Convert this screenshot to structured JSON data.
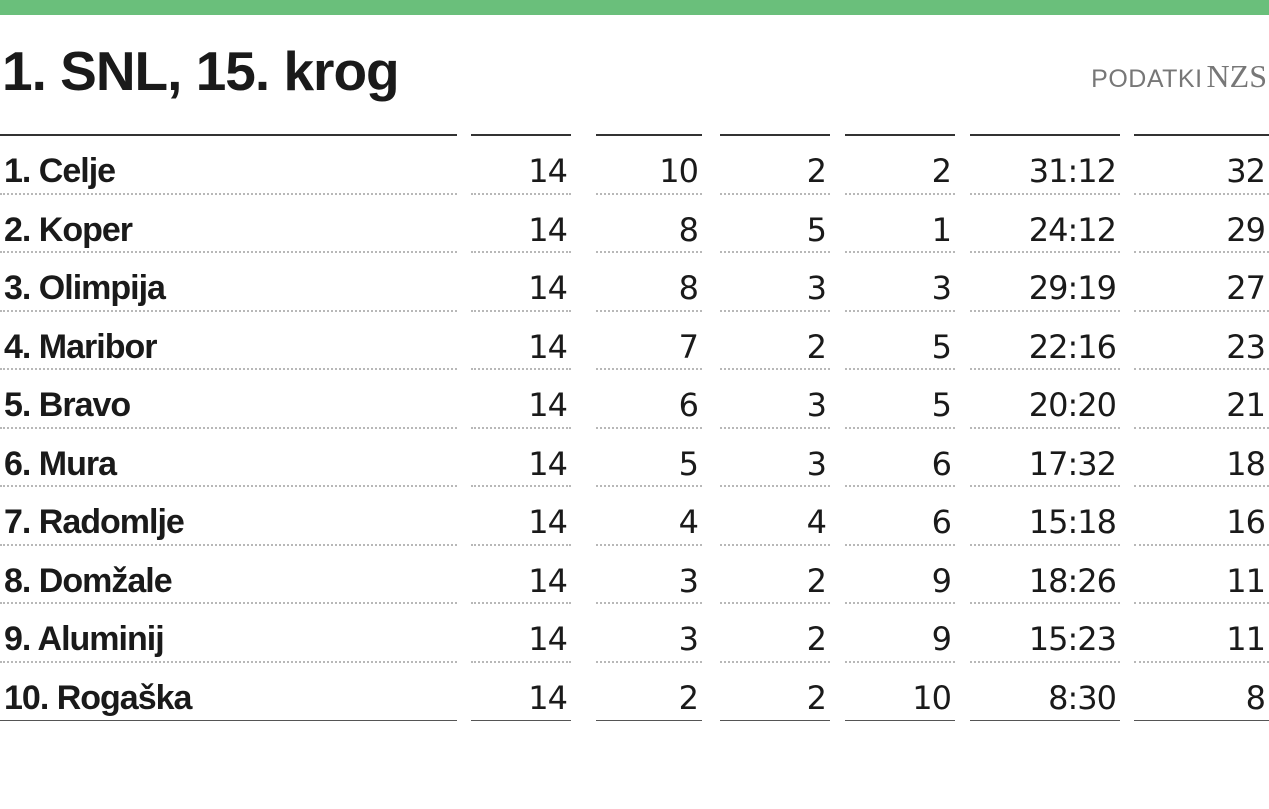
{
  "accent_color": "#6abf7b",
  "title": "1. SNL, 15. krog",
  "source": {
    "label": "PODATKI",
    "org": "NZS"
  },
  "table": {
    "rows": [
      {
        "team": "1. Celje",
        "played": "14",
        "won": "10",
        "drawn": "2",
        "lost": "2",
        "goals": "31:12",
        "points": "32"
      },
      {
        "team": "2. Koper",
        "played": "14",
        "won": "8",
        "drawn": "5",
        "lost": "1",
        "goals": "24:12",
        "points": "29"
      },
      {
        "team": "3. Olimpija",
        "played": "14",
        "won": "8",
        "drawn": "3",
        "lost": "3",
        "goals": "29:19",
        "points": "27"
      },
      {
        "team": "4. Maribor",
        "played": "14",
        "won": "7",
        "drawn": "2",
        "lost": "5",
        "goals": "22:16",
        "points": "23"
      },
      {
        "team": "5. Bravo",
        "played": "14",
        "won": "6",
        "drawn": "3",
        "lost": "5",
        "goals": "20:20",
        "points": "21"
      },
      {
        "team": "6. Mura",
        "played": "14",
        "won": "5",
        "drawn": "3",
        "lost": "6",
        "goals": "17:32",
        "points": "18"
      },
      {
        "team": "7. Radomlje",
        "played": "14",
        "won": "4",
        "drawn": "4",
        "lost": "6",
        "goals": "15:18",
        "points": "16"
      },
      {
        "team": "8. Domžale",
        "played": "14",
        "won": "3",
        "drawn": "2",
        "lost": "9",
        "goals": "18:26",
        "points": "11"
      },
      {
        "team": "9. Aluminij",
        "played": "14",
        "won": "3",
        "drawn": "2",
        "lost": "9",
        "goals": "15:23",
        "points": "11"
      },
      {
        "team": "10. Rogaška",
        "played": "14",
        "won": "2",
        "drawn": "2",
        "lost": "10",
        "goals": "8:30",
        "points": "8"
      }
    ]
  }
}
